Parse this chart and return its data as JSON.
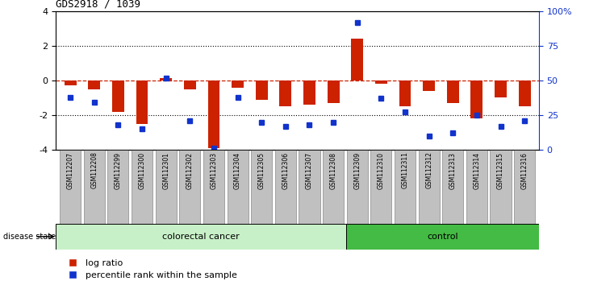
{
  "title": "GDS2918 / 1039",
  "samples": [
    "GSM112207",
    "GSM112208",
    "GSM112299",
    "GSM112300",
    "GSM112301",
    "GSM112302",
    "GSM112303",
    "GSM112304",
    "GSM112305",
    "GSM112306",
    "GSM112307",
    "GSM112308",
    "GSM112309",
    "GSM112310",
    "GSM112311",
    "GSM112312",
    "GSM112313",
    "GSM112314",
    "GSM112315",
    "GSM112316"
  ],
  "log_ratio": [
    -0.3,
    -0.5,
    -1.8,
    -2.5,
    0.15,
    -0.5,
    -3.9,
    -0.4,
    -1.1,
    -1.5,
    -1.4,
    -1.3,
    2.4,
    -0.2,
    -1.5,
    -0.6,
    -1.3,
    -2.2,
    -1.0,
    -1.5
  ],
  "percentile_rank": [
    38,
    34,
    18,
    15,
    52,
    21,
    1,
    38,
    20,
    17,
    18,
    20,
    92,
    37,
    27,
    10,
    12,
    25,
    17,
    21
  ],
  "colorectal_count": 12,
  "bar_color": "#cc2200",
  "dot_color": "#1133cc",
  "right_axis_color": "#1133cc",
  "zero_line_color": "#cc2200",
  "ylim": [
    -4,
    4
  ],
  "yticks_left": [
    -4,
    -2,
    0,
    2,
    4
  ],
  "yticks_right": [
    0,
    25,
    50,
    75,
    100
  ],
  "colorectal_color": "#c8f0c8",
  "control_color": "#44bb44",
  "bg_color": "#c0c0c0",
  "legend_log_ratio": "log ratio",
  "legend_percentile": "percentile rank within the sample",
  "disease_label": "disease state",
  "colorectal_label": "colorectal cancer",
  "control_label": "control"
}
